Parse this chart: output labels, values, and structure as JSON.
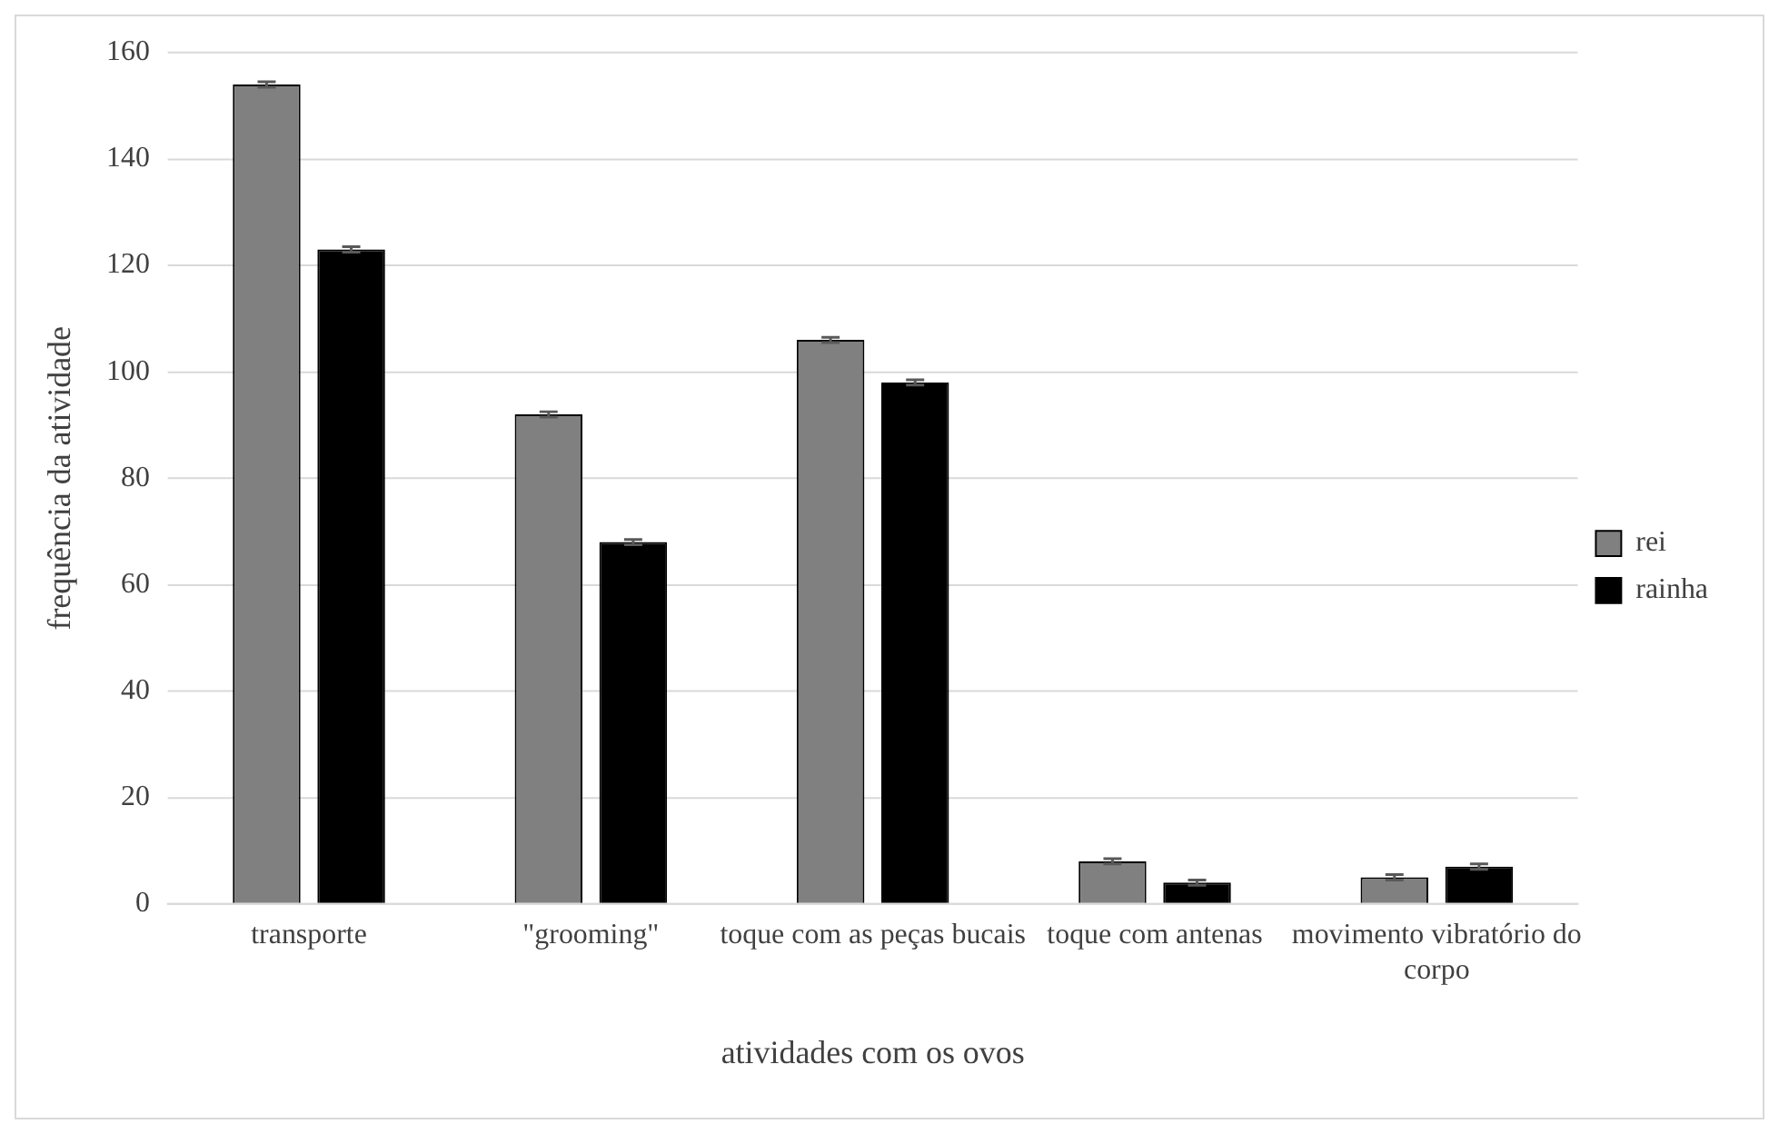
{
  "chart_data": {
    "type": "bar",
    "xlabel": "atividades com os ovos",
    "ylabel": "frequência da atividade",
    "categories": [
      "transporte",
      "\"grooming\"",
      "toque com as peças bucais",
      "toque com antenas",
      "movimento vibratório do corpo"
    ],
    "series": [
      {
        "name": "rei",
        "color": "#808080",
        "values": [
          154,
          92,
          106,
          8,
          5
        ],
        "errors": [
          0.5,
          0.5,
          0.5,
          0.5,
          0.5
        ]
      },
      {
        "name": "rainha",
        "color": "#000000",
        "values": [
          123,
          68,
          98,
          4,
          7
        ],
        "errors": [
          0.5,
          0.5,
          0.5,
          0.5,
          0.5
        ]
      }
    ],
    "ylim": [
      0,
      160
    ],
    "yticks": [
      0,
      20,
      40,
      60,
      80,
      100,
      120,
      140,
      160
    ],
    "grid": "y",
    "legend": "right"
  }
}
